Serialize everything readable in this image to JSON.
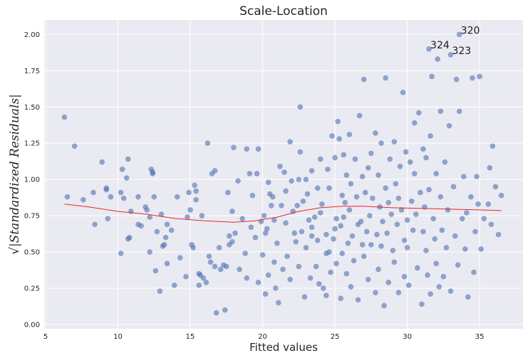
{
  "chart_data": {
    "type": "scatter",
    "title": "Scale-Location",
    "xlabel": "Fitted values",
    "ylabel": "√|Standardized Residuals|",
    "xlim": [
      4.9,
      38
    ],
    "ylim": [
      -0.03,
      2.1
    ],
    "xticks": [
      5,
      10,
      15,
      20,
      25,
      30,
      35
    ],
    "yticks": [
      0.0,
      0.25,
      0.5,
      0.75,
      1.0,
      1.25,
      1.5,
      1.75,
      2.0
    ],
    "xtick_labels": [
      "5",
      "10",
      "15",
      "20",
      "25",
      "30",
      "35"
    ],
    "ytick_labels": [
      "0.00",
      "0.25",
      "0.50",
      "0.75",
      "1.00",
      "1.25",
      "1.50",
      "1.75",
      "2.00"
    ],
    "grid": true,
    "colors": {
      "background": "#EAEAF2",
      "points": "#4C72B0",
      "trend": "#E8262B",
      "grid": "#FFFFFF"
    },
    "annotations": [
      {
        "text": "320",
        "x": 33.6,
        "y": 2.0
      },
      {
        "text": "324",
        "x": 31.5,
        "y": 1.9
      },
      {
        "text": "323",
        "x": 33.0,
        "y": 1.86
      }
    ],
    "lowess": [
      [
        6.3,
        0.83
      ],
      [
        8,
        0.81
      ],
      [
        10,
        0.78
      ],
      [
        12,
        0.76
      ],
      [
        14,
        0.73
      ],
      [
        16,
        0.715
      ],
      [
        18,
        0.705
      ],
      [
        19.5,
        0.715
      ],
      [
        21,
        0.74
      ],
      [
        22.5,
        0.78
      ],
      [
        24,
        0.805
      ],
      [
        25.5,
        0.815
      ],
      [
        27,
        0.815
      ],
      [
        29,
        0.805
      ],
      [
        31,
        0.8
      ],
      [
        33,
        0.795
      ],
      [
        35,
        0.79
      ],
      [
        36.5,
        0.785
      ]
    ],
    "points": [
      [
        6.3,
        1.43
      ],
      [
        6.5,
        0.88
      ],
      [
        7.0,
        1.23
      ],
      [
        7.6,
        0.86
      ],
      [
        8.3,
        0.91
      ],
      [
        8.4,
        0.69
      ],
      [
        8.9,
        1.12
      ],
      [
        9.2,
        0.94
      ],
      [
        9.2,
        0.93
      ],
      [
        9.3,
        0.73
      ],
      [
        9.5,
        0.88
      ],
      [
        10.2,
        0.91
      ],
      [
        10.2,
        0.49
      ],
      [
        10.3,
        1.07
      ],
      [
        10.4,
        0.87
      ],
      [
        10.6,
        1.01
      ],
      [
        10.7,
        1.14
      ],
      [
        10.7,
        0.59
      ],
      [
        10.8,
        0.6
      ],
      [
        10.9,
        0.78
      ],
      [
        11.4,
        0.88
      ],
      [
        11.4,
        0.69
      ],
      [
        11.6,
        0.68
      ],
      [
        11.9,
        0.81
      ],
      [
        12.0,
        0.79
      ],
      [
        12.2,
        0.74
      ],
      [
        12.2,
        0.5
      ],
      [
        12.3,
        1.07
      ],
      [
        12.4,
        1.05
      ],
      [
        12.4,
        1.04
      ],
      [
        12.5,
        0.88
      ],
      [
        12.6,
        0.37
      ],
      [
        12.7,
        0.64
      ],
      [
        12.9,
        0.23
      ],
      [
        13.0,
        0.76
      ],
      [
        13.1,
        0.54
      ],
      [
        13.2,
        0.55
      ],
      [
        13.3,
        0.6
      ],
      [
        13.4,
        0.69
      ],
      [
        13.4,
        0.42
      ],
      [
        13.7,
        0.65
      ],
      [
        13.9,
        0.27
      ],
      [
        14.1,
        0.88
      ],
      [
        14.3,
        0.46
      ],
      [
        14.7,
        0.33
      ],
      [
        14.8,
        0.74
      ],
      [
        14.9,
        0.91
      ],
      [
        15.0,
        0.79
      ],
      [
        15.1,
        0.55
      ],
      [
        15.2,
        0.53
      ],
      [
        15.3,
        0.96
      ],
      [
        15.4,
        0.92
      ],
      [
        15.4,
        0.86
      ],
      [
        15.6,
        0.27
      ],
      [
        15.6,
        0.35
      ],
      [
        15.7,
        0.34
      ],
      [
        15.8,
        0.75
      ],
      [
        15.9,
        0.32
      ],
      [
        16.1,
        0.29
      ],
      [
        16.2,
        1.25
      ],
      [
        16.3,
        0.47
      ],
      [
        16.4,
        0.43
      ],
      [
        16.5,
        1.04
      ],
      [
        16.7,
        0.4
      ],
      [
        16.7,
        1.06
      ],
      [
        16.8,
        0.08
      ],
      [
        17.0,
        0.53
      ],
      [
        17.1,
        0.38
      ],
      [
        17.3,
        0.41
      ],
      [
        17.4,
        0.1
      ],
      [
        17.5,
        0.4
      ],
      [
        17.6,
        0.91
      ],
      [
        17.7,
        0.55
      ],
      [
        17.7,
        0.61
      ],
      [
        17.9,
        0.57
      ],
      [
        17.9,
        0.78
      ],
      [
        18.0,
        1.22
      ],
      [
        18.1,
        0.63
      ],
      [
        18.3,
        0.99
      ],
      [
        18.4,
        0.38
      ],
      [
        18.6,
        0.73
      ],
      [
        18.8,
        0.49
      ],
      [
        18.9,
        1.21
      ],
      [
        18.9,
        0.32
      ],
      [
        19.1,
        1.04
      ],
      [
        19.2,
        0.67
      ],
      [
        19.3,
        0.89
      ],
      [
        19.5,
        0.6
      ],
      [
        19.6,
        1.04
      ],
      [
        19.7,
        0.29
      ],
      [
        19.7,
        1.21
      ],
      [
        19.9,
        0.71
      ],
      [
        20.0,
        0.48
      ],
      [
        20.1,
        0.75
      ],
      [
        20.2,
        0.63
      ],
      [
        20.2,
        0.21
      ],
      [
        20.3,
        0.66
      ],
      [
        20.4,
        0.98
      ],
      [
        20.4,
        0.34
      ],
      [
        20.5,
        0.9
      ],
      [
        20.6,
        0.82
      ],
      [
        20.7,
        0.88
      ],
      [
        20.8,
        0.43
      ],
      [
        20.8,
        0.72
      ],
      [
        20.9,
        0.25
      ],
      [
        21.0,
        0.56
      ],
      [
        21.1,
        0.15
      ],
      [
        21.2,
        1.09
      ],
      [
        21.3,
        0.82
      ],
      [
        21.4,
        0.38
      ],
      [
        21.5,
        1.05
      ],
      [
        21.6,
        0.7
      ],
      [
        21.6,
        0.92
      ],
      [
        21.7,
        0.47
      ],
      [
        21.9,
        1.26
      ],
      [
        21.9,
        0.31
      ],
      [
        22.0,
        0.99
      ],
      [
        22.1,
        0.78
      ],
      [
        22.2,
        0.63
      ],
      [
        22.3,
        0.57
      ],
      [
        22.4,
        0.82
      ],
      [
        22.5,
        1.0
      ],
      [
        22.5,
        0.4
      ],
      [
        22.6,
        1.19
      ],
      [
        22.6,
        1.5
      ],
      [
        22.7,
        0.64
      ],
      [
        22.8,
        0.85
      ],
      [
        22.9,
        0.19
      ],
      [
        23.0,
        0.53
      ],
      [
        23.0,
        1.0
      ],
      [
        23.1,
        0.9
      ],
      [
        23.2,
        0.72
      ],
      [
        23.3,
        0.32
      ],
      [
        23.4,
        0.67
      ],
      [
        23.4,
        1.06
      ],
      [
        23.4,
        0.61
      ],
      [
        23.6,
        0.74
      ],
      [
        23.7,
        0.4
      ],
      [
        23.8,
        0.94
      ],
      [
        23.8,
        0.58
      ],
      [
        23.9,
        0.28
      ],
      [
        24.0,
        0.77
      ],
      [
        24.0,
        1.14
      ],
      [
        24.1,
        0.83
      ],
      [
        24.2,
        0.25
      ],
      [
        24.4,
        0.62
      ],
      [
        24.4,
        0.49
      ],
      [
        24.4,
        0.2
      ],
      [
        24.5,
        1.07
      ],
      [
        24.6,
        0.5
      ],
      [
        24.6,
        0.94
      ],
      [
        24.7,
        0.36
      ],
      [
        24.8,
        1.3
      ],
      [
        24.9,
        0.59
      ],
      [
        25.0,
        0.66
      ],
      [
        25.0,
        1.15
      ],
      [
        25.1,
        0.42
      ],
      [
        25.1,
        0.73
      ],
      [
        25.2,
        1.4
      ],
      [
        25.3,
        1.28
      ],
      [
        25.4,
        0.68
      ],
      [
        25.4,
        0.18
      ],
      [
        25.5,
        0.89
      ],
      [
        25.5,
        0.49
      ],
      [
        25.6,
        1.17
      ],
      [
        25.6,
        0.74
      ],
      [
        25.7,
        0.84
      ],
      [
        25.8,
        0.35
      ],
      [
        25.8,
        1.03
      ],
      [
        25.9,
        0.56
      ],
      [
        26.0,
        0.79
      ],
      [
        26.0,
        1.31
      ],
      [
        26.1,
        0.26
      ],
      [
        26.1,
        0.97
      ],
      [
        26.2,
        0.61
      ],
      [
        26.3,
        0.44
      ],
      [
        26.4,
        1.14
      ],
      [
        26.5,
        0.88
      ],
      [
        26.6,
        0.69
      ],
      [
        26.6,
        0.17
      ],
      [
        26.7,
        1.44
      ],
      [
        26.8,
        0.71
      ],
      [
        26.9,
        0.55
      ],
      [
        26.9,
        1.02
      ],
      [
        27.0,
        0.47
      ],
      [
        27.0,
        1.69
      ],
      [
        27.1,
        0.91
      ],
      [
        27.2,
        0.64
      ],
      [
        27.3,
        0.31
      ],
      [
        27.3,
        1.08
      ],
      [
        27.4,
        0.75
      ],
      [
        27.5,
        1.18
      ],
      [
        27.5,
        0.55
      ],
      [
        27.6,
        0.87
      ],
      [
        27.8,
        1.32
      ],
      [
        27.8,
        0.22
      ],
      [
        27.9,
        0.62
      ],
      [
        28.0,
        1.03
      ],
      [
        28.0,
        0.38
      ],
      [
        28.1,
        0.81
      ],
      [
        28.2,
        1.25
      ],
      [
        28.2,
        0.54
      ],
      [
        28.3,
        0.71
      ],
      [
        28.4,
        0.13
      ],
      [
        28.5,
        0.94
      ],
      [
        28.5,
        1.7
      ],
      [
        28.6,
        0.63
      ],
      [
        28.7,
        0.84
      ],
      [
        28.7,
        0.29
      ],
      [
        28.8,
        1.14
      ],
      [
        28.9,
        0.76
      ],
      [
        29.0,
        0.51
      ],
      [
        29.1,
        1.26
      ],
      [
        29.1,
        0.43
      ],
      [
        29.2,
        0.97
      ],
      [
        29.3,
        0.69
      ],
      [
        29.4,
        0.87
      ],
      [
        29.4,
        0.22
      ],
      [
        29.5,
        1.09
      ],
      [
        29.6,
        0.79
      ],
      [
        29.7,
        1.6
      ],
      [
        29.8,
        0.33
      ],
      [
        29.8,
        0.58
      ],
      [
        29.9,
        1.19
      ],
      [
        30.0,
        0.72
      ],
      [
        30.0,
        0.53
      ],
      [
        30.1,
        0.27
      ],
      [
        30.2,
        1.12
      ],
      [
        30.3,
        0.85
      ],
      [
        30.4,
        0.65
      ],
      [
        30.5,
        1.39
      ],
      [
        30.5,
        1.04
      ],
      [
        30.6,
        0.76
      ],
      [
        30.7,
        0.39
      ],
      [
        30.8,
        1.46
      ],
      [
        30.9,
        0.91
      ],
      [
        31.0,
        0.14
      ],
      [
        31.1,
        1.21
      ],
      [
        31.1,
        0.64
      ],
      [
        31.2,
        0.81
      ],
      [
        31.3,
        0.51
      ],
      [
        31.3,
        1.15
      ],
      [
        31.4,
        0.34
      ],
      [
        31.5,
        0.93
      ],
      [
        31.6,
        1.3
      ],
      [
        31.6,
        0.21
      ],
      [
        31.7,
        1.71
      ],
      [
        31.8,
        0.73
      ],
      [
        31.9,
        0.59
      ],
      [
        32.0,
        1.04
      ],
      [
        32.0,
        0.42
      ],
      [
        32.1,
        1.83
      ],
      [
        32.2,
        0.26
      ],
      [
        32.3,
        0.88
      ],
      [
        32.3,
        1.47
      ],
      [
        32.4,
        0.65
      ],
      [
        32.5,
        0.33
      ],
      [
        32.6,
        1.12
      ],
      [
        32.7,
        0.53
      ],
      [
        32.8,
        0.79
      ],
      [
        32.9,
        1.37
      ],
      [
        33.0,
        0.23
      ],
      [
        33.2,
        0.95
      ],
      [
        33.3,
        0.61
      ],
      [
        33.4,
        1.69
      ],
      [
        33.5,
        0.41
      ],
      [
        33.6,
        1.47
      ],
      [
        33.8,
        0.73
      ],
      [
        33.9,
        1.02
      ],
      [
        34.0,
        0.52
      ],
      [
        34.1,
        0.77
      ],
      [
        34.2,
        0.19
      ],
      [
        34.4,
        0.88
      ],
      [
        34.5,
        1.7
      ],
      [
        34.6,
        0.36
      ],
      [
        34.7,
        0.64
      ],
      [
        34.8,
        1.02
      ],
      [
        34.9,
        0.83
      ],
      [
        35.0,
        1.71
      ],
      [
        35.1,
        0.52
      ],
      [
        35.3,
        0.73
      ],
      [
        35.6,
        0.83
      ],
      [
        35.7,
        1.08
      ],
      [
        35.8,
        0.69
      ],
      [
        35.9,
        1.23
      ],
      [
        36.1,
        0.95
      ],
      [
        36.3,
        0.62
      ],
      [
        36.5,
        0.89
      ],
      [
        31.5,
        1.9
      ],
      [
        33.0,
        1.86
      ],
      [
        33.6,
        2.0
      ]
    ]
  }
}
